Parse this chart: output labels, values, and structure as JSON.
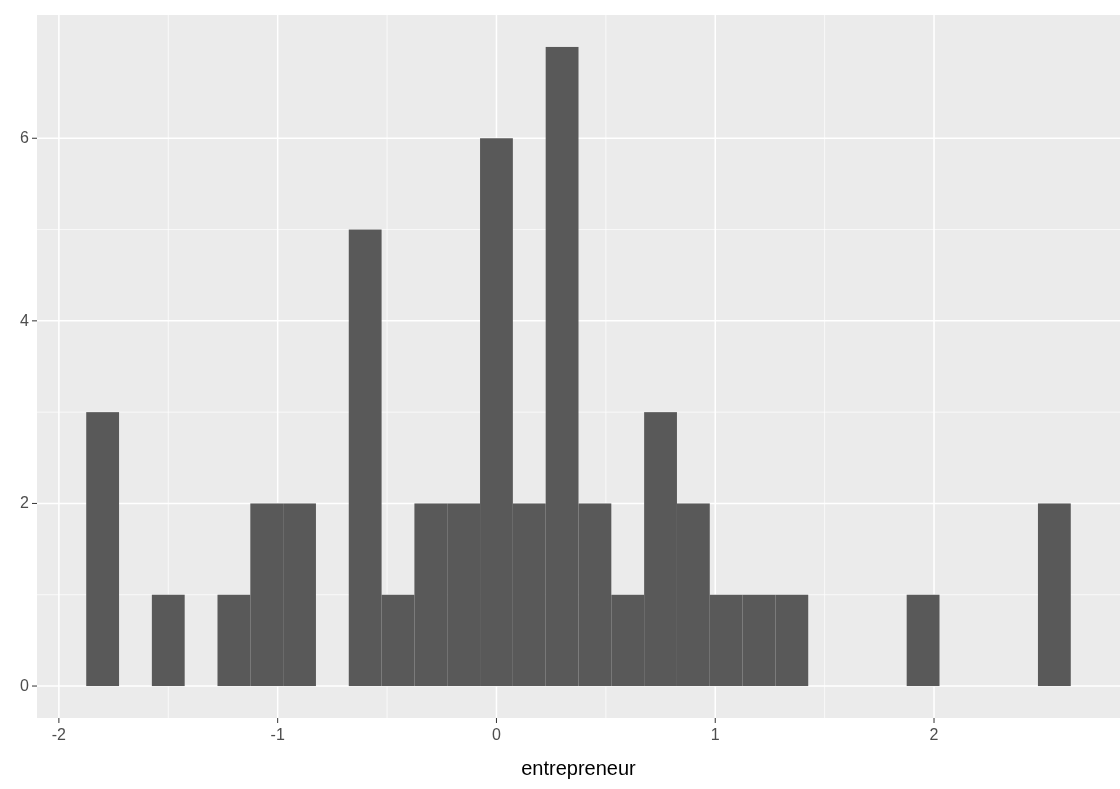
{
  "chart_data": {
    "type": "histogram",
    "xlabel": "entrepreneur",
    "bins": [
      -1.875,
      -1.725,
      -1.575,
      -1.425,
      -1.275,
      -1.125,
      -0.975,
      -0.825,
      -0.675,
      -0.525,
      -0.375,
      -0.225,
      -0.075,
      0.075,
      0.225,
      0.375,
      0.525,
      0.675,
      0.825,
      0.975,
      1.125,
      1.275,
      1.425,
      1.575,
      1.725,
      1.875,
      2.025,
      2.175,
      2.325,
      2.475,
      2.625
    ],
    "values": [
      3,
      0,
      1,
      0,
      1,
      2,
      2,
      0,
      5,
      1,
      2,
      2,
      6,
      2,
      7,
      2,
      1,
      3,
      2,
      1,
      1,
      1,
      0,
      0,
      0,
      1,
      0,
      0,
      0,
      2
    ],
    "color": "#595959",
    "xlim": [
      -2.1,
      2.85
    ],
    "xticks": [
      -2,
      -1,
      0,
      1,
      2
    ],
    "ylim": [
      -0.35,
      7.35
    ],
    "yticks": [
      0,
      2,
      4,
      6
    ],
    "grid": true
  }
}
